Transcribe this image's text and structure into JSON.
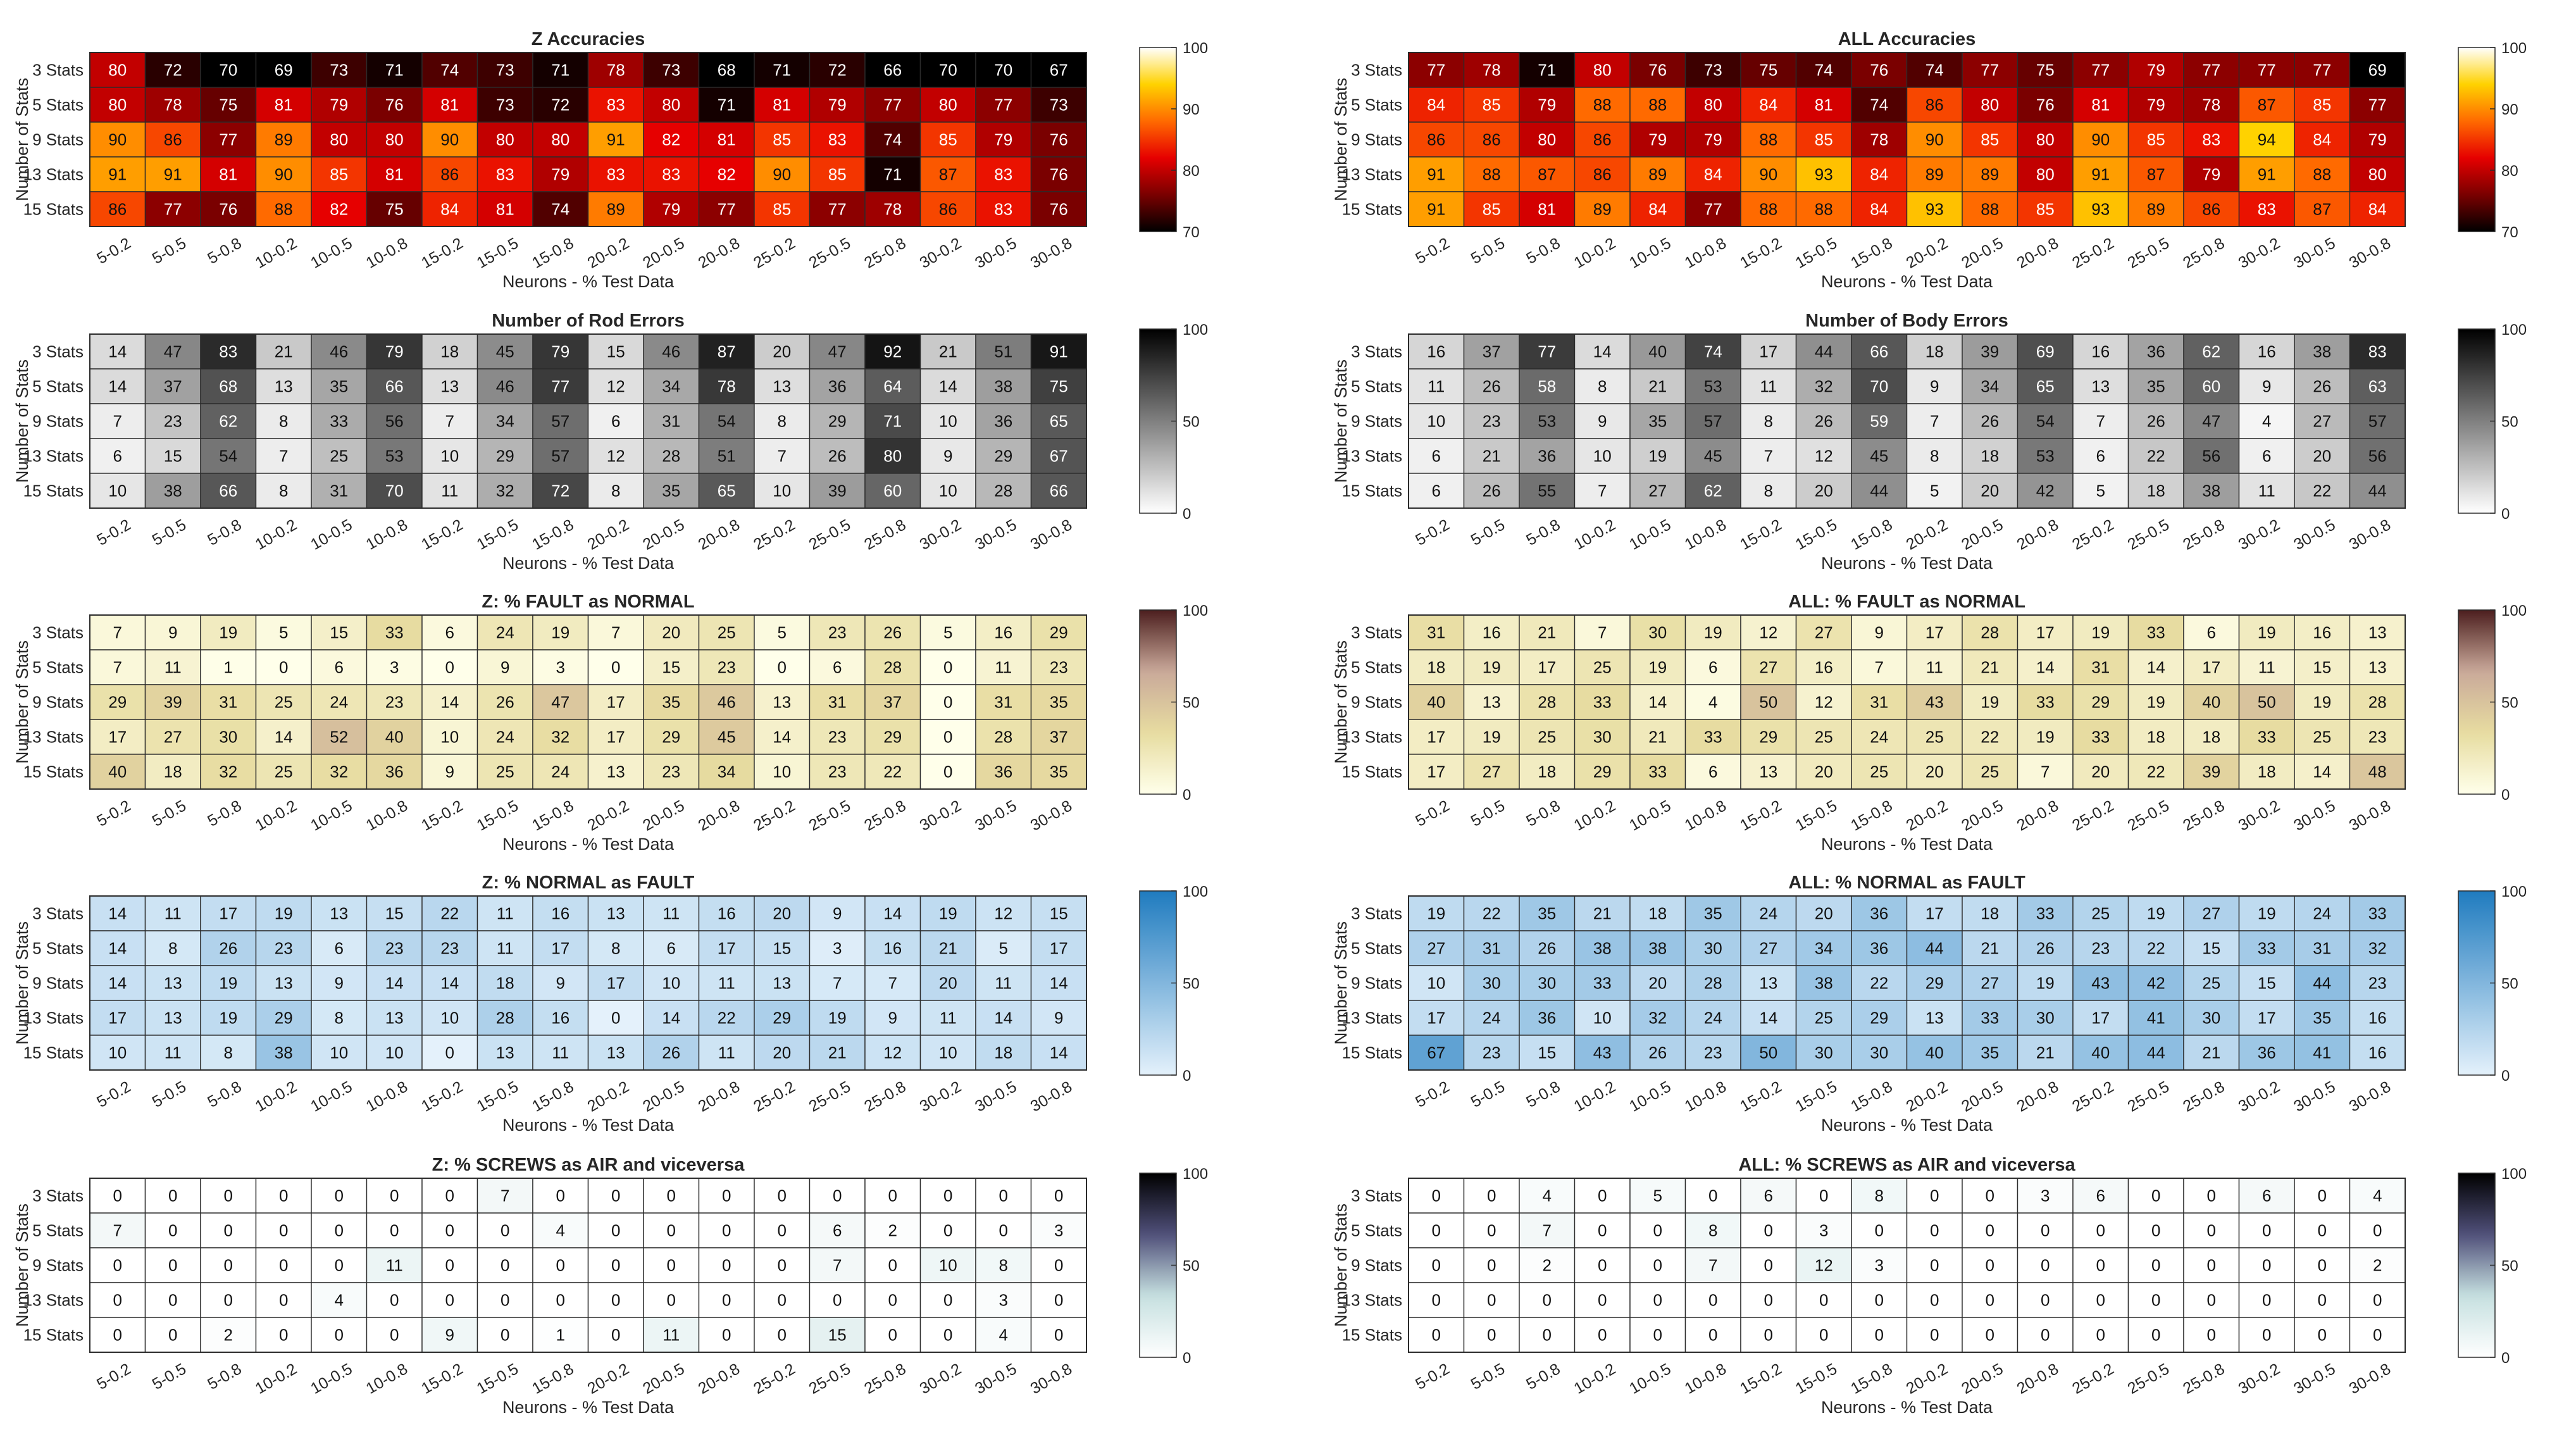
{
  "rows": [
    "3 Stats",
    "5 Stats",
    "9 Stats",
    "13 Stats",
    "15 Stats"
  ],
  "columns": [
    "5-0.2",
    "5-0.5",
    "5-0.8",
    "10-0.2",
    "10-0.5",
    "10-0.8",
    "15-0.2",
    "15-0.5",
    "15-0.8",
    "20-0.2",
    "20-0.5",
    "20-0.8",
    "25-0.2",
    "25-0.5",
    "25-0.8",
    "30-0.2",
    "30-0.5",
    "30-0.8"
  ],
  "ylabel": "Number of Stats",
  "xlabel": "Neurons - % Test Data",
  "colors": {
    "hot": [
      "#000000",
      "#7a0000",
      "#e60000",
      "#ff6a00",
      "#ffd200",
      "#ffffff"
    ],
    "gray": [
      "#ffffff",
      "#000000"
    ],
    "pink": [
      "#ffffea",
      "#e7dca0",
      "#c9a99a",
      "#4c1e1e"
    ],
    "blue": [
      "#e4f1fb",
      "#1f7bbf"
    ],
    "bone": [
      "#ffffff",
      "#c6e0e0",
      "#50507a",
      "#000000"
    ],
    "grid": "#2b2b2b",
    "text": "#262626"
  },
  "chart_data": [
    {
      "type": "heatmap",
      "title": "Z Accuracies",
      "colormap": "hot",
      "clim": [
        70,
        100
      ],
      "cticks": [
        "100",
        "90",
        "80",
        "70"
      ],
      "values": [
        [
          80,
          72,
          70,
          69,
          73,
          71,
          74,
          73,
          71,
          78,
          73,
          68,
          71,
          72,
          66,
          70,
          70,
          67
        ],
        [
          80,
          78,
          75,
          81,
          79,
          76,
          81,
          73,
          72,
          83,
          80,
          71,
          81,
          79,
          77,
          80,
          77,
          73
        ],
        [
          90,
          86,
          77,
          89,
          80,
          80,
          90,
          80,
          80,
          91,
          82,
          81,
          85,
          83,
          74,
          85,
          79,
          76
        ],
        [
          91,
          91,
          81,
          90,
          85,
          81,
          86,
          83,
          79,
          83,
          83,
          82,
          90,
          85,
          71,
          87,
          83,
          76
        ],
        [
          86,
          77,
          76,
          88,
          82,
          75,
          84,
          81,
          74,
          89,
          79,
          77,
          85,
          77,
          78,
          86,
          83,
          76
        ]
      ]
    },
    {
      "type": "heatmap",
      "title": "ALL Accuracies",
      "colormap": "hot",
      "clim": [
        70,
        100
      ],
      "cticks": [
        "100",
        "90",
        "80",
        "70"
      ],
      "values": [
        [
          77,
          78,
          71,
          80,
          76,
          73,
          75,
          74,
          76,
          74,
          77,
          75,
          77,
          79,
          77,
          77,
          77,
          69
        ],
        [
          84,
          85,
          79,
          88,
          88,
          80,
          84,
          81,
          74,
          86,
          80,
          76,
          81,
          79,
          78,
          87,
          85,
          77
        ],
        [
          86,
          86,
          80,
          86,
          79,
          79,
          88,
          85,
          78,
          90,
          85,
          80,
          90,
          85,
          83,
          94,
          84,
          79
        ],
        [
          91,
          88,
          87,
          86,
          89,
          84,
          90,
          93,
          84,
          89,
          89,
          80,
          91,
          87,
          79,
          91,
          88,
          80
        ],
        [
          91,
          85,
          81,
          89,
          84,
          77,
          88,
          88,
          84,
          93,
          88,
          85,
          93,
          89,
          86,
          83,
          87,
          84
        ]
      ]
    },
    {
      "type": "heatmap",
      "title": "Number of Rod Errors",
      "colormap": "gray",
      "clim": [
        0,
        100
      ],
      "cticks": [
        "100",
        "50",
        "0"
      ],
      "values": [
        [
          14,
          47,
          83,
          21,
          46,
          79,
          18,
          45,
          79,
          15,
          46,
          87,
          20,
          47,
          92,
          21,
          51,
          91
        ],
        [
          14,
          37,
          68,
          13,
          35,
          66,
          13,
          46,
          77,
          12,
          34,
          78,
          13,
          36,
          64,
          14,
          38,
          75
        ],
        [
          7,
          23,
          62,
          8,
          33,
          56,
          7,
          34,
          57,
          6,
          31,
          54,
          8,
          29,
          71,
          10,
          36,
          65
        ],
        [
          6,
          15,
          54,
          7,
          25,
          53,
          10,
          29,
          57,
          12,
          28,
          51,
          7,
          26,
          80,
          9,
          29,
          67
        ],
        [
          10,
          38,
          66,
          8,
          31,
          70,
          11,
          32,
          72,
          8,
          35,
          65,
          10,
          39,
          60,
          10,
          28,
          66
        ]
      ]
    },
    {
      "type": "heatmap",
      "title": "Number of Body Errors",
      "colormap": "gray",
      "clim": [
        0,
        100
      ],
      "cticks": [
        "100",
        "50",
        "0"
      ],
      "values": [
        [
          16,
          37,
          77,
          14,
          40,
          74,
          17,
          44,
          66,
          18,
          39,
          69,
          16,
          36,
          62,
          16,
          38,
          83
        ],
        [
          11,
          26,
          58,
          8,
          21,
          53,
          11,
          32,
          70,
          9,
          34,
          65,
          13,
          35,
          60,
          9,
          26,
          63
        ],
        [
          10,
          23,
          53,
          9,
          35,
          57,
          8,
          26,
          59,
          7,
          26,
          54,
          7,
          26,
          47,
          4,
          27,
          57
        ],
        [
          6,
          21,
          36,
          10,
          19,
          45,
          7,
          12,
          45,
          8,
          18,
          53,
          6,
          22,
          56,
          6,
          20,
          56
        ],
        [
          6,
          26,
          55,
          7,
          27,
          62,
          8,
          20,
          44,
          5,
          20,
          42,
          5,
          18,
          38,
          11,
          22,
          44
        ]
      ]
    },
    {
      "type": "heatmap",
      "title": "Z: % FAULT as NORMAL",
      "colormap": "pink",
      "clim": [
        0,
        100
      ],
      "cticks": [
        "100",
        "50",
        "0"
      ],
      "values": [
        [
          7,
          9,
          19,
          5,
          15,
          33,
          6,
          24,
          19,
          7,
          20,
          25,
          5,
          23,
          26,
          5,
          16,
          29
        ],
        [
          7,
          11,
          1,
          0,
          6,
          3,
          0,
          9,
          3,
          0,
          15,
          23,
          0,
          6,
          28,
          0,
          11,
          23
        ],
        [
          29,
          39,
          31,
          25,
          24,
          23,
          14,
          26,
          47,
          17,
          35,
          46,
          13,
          31,
          37,
          0,
          31,
          35
        ],
        [
          17,
          27,
          30,
          14,
          52,
          40,
          10,
          24,
          32,
          17,
          29,
          45,
          14,
          23,
          29,
          0,
          28,
          37
        ],
        [
          40,
          18,
          32,
          25,
          32,
          36,
          9,
          25,
          24,
          13,
          23,
          34,
          10,
          23,
          22,
          0,
          36,
          35
        ]
      ]
    },
    {
      "type": "heatmap",
      "title": "ALL: % FAULT as NORMAL",
      "colormap": "pink",
      "clim": [
        0,
        100
      ],
      "cticks": [
        "100",
        "50",
        "0"
      ],
      "values": [
        [
          31,
          16,
          21,
          7,
          30,
          19,
          12,
          27,
          9,
          17,
          28,
          17,
          19,
          33,
          6,
          19,
          16,
          13
        ],
        [
          18,
          19,
          17,
          25,
          19,
          6,
          27,
          16,
          7,
          11,
          21,
          14,
          31,
          14,
          17,
          11,
          15,
          13
        ],
        [
          40,
          13,
          28,
          33,
          14,
          4,
          50,
          12,
          31,
          43,
          19,
          33,
          29,
          19,
          40,
          50,
          19,
          28
        ],
        [
          17,
          19,
          25,
          30,
          21,
          33,
          29,
          25,
          24,
          25,
          22,
          19,
          33,
          18,
          18,
          33,
          25,
          23
        ],
        [
          17,
          27,
          18,
          29,
          33,
          6,
          13,
          20,
          25,
          20,
          25,
          7,
          20,
          22,
          39,
          18,
          14,
          48
        ]
      ]
    },
    {
      "type": "heatmap",
      "title": "Z: % NORMAL as FAULT",
      "colormap": "blue",
      "clim": [
        0,
        100
      ],
      "cticks": [
        "100",
        "50",
        "0"
      ],
      "values": [
        [
          14,
          11,
          17,
          19,
          13,
          15,
          22,
          11,
          16,
          13,
          11,
          16,
          20,
          9,
          14,
          19,
          12,
          15
        ],
        [
          14,
          8,
          26,
          23,
          6,
          23,
          23,
          11,
          17,
          8,
          6,
          17,
          15,
          3,
          16,
          21,
          5,
          17
        ],
        [
          14,
          13,
          19,
          13,
          9,
          14,
          14,
          18,
          9,
          17,
          10,
          11,
          13,
          7,
          7,
          20,
          11,
          14
        ],
        [
          17,
          13,
          19,
          29,
          8,
          13,
          10,
          28,
          16,
          0,
          14,
          22,
          29,
          19,
          9,
          11,
          14,
          9
        ],
        [
          10,
          11,
          8,
          38,
          10,
          10,
          0,
          13,
          11,
          13,
          26,
          11,
          20,
          21,
          12,
          10,
          18,
          14
        ]
      ]
    },
    {
      "type": "heatmap",
      "title": "ALL: % NORMAL as FAULT",
      "colormap": "blue",
      "clim": [
        0,
        100
      ],
      "cticks": [
        "100",
        "50",
        "0"
      ],
      "values": [
        [
          19,
          22,
          35,
          21,
          18,
          35,
          24,
          20,
          36,
          17,
          18,
          33,
          25,
          19,
          27,
          19,
          24,
          33
        ],
        [
          27,
          31,
          26,
          38,
          38,
          30,
          27,
          34,
          36,
          44,
          21,
          26,
          23,
          22,
          15,
          33,
          31,
          32
        ],
        [
          10,
          30,
          30,
          33,
          20,
          28,
          13,
          38,
          22,
          29,
          27,
          19,
          43,
          42,
          25,
          15,
          44,
          23
        ],
        [
          17,
          24,
          36,
          10,
          32,
          24,
          14,
          25,
          29,
          13,
          33,
          30,
          17,
          41,
          30,
          17,
          35,
          16
        ],
        [
          67,
          23,
          15,
          43,
          26,
          23,
          50,
          30,
          30,
          40,
          35,
          21,
          40,
          44,
          21,
          36,
          41,
          16
        ]
      ]
    },
    {
      "type": "heatmap",
      "title": "Z: % SCREWS as AIR and viceversa",
      "colormap": "bone",
      "clim": [
        0,
        100
      ],
      "cticks": [
        "100",
        "50",
        "0"
      ],
      "values": [
        [
          0,
          0,
          0,
          0,
          0,
          0,
          0,
          7,
          0,
          0,
          0,
          0,
          0,
          0,
          0,
          0,
          0,
          0
        ],
        [
          7,
          0,
          0,
          0,
          0,
          0,
          0,
          0,
          4,
          0,
          0,
          0,
          0,
          6,
          2,
          0,
          0,
          3
        ],
        [
          0,
          0,
          0,
          0,
          0,
          11,
          0,
          0,
          0,
          0,
          0,
          0,
          0,
          7,
          0,
          10,
          8,
          0
        ],
        [
          0,
          0,
          0,
          0,
          4,
          0,
          0,
          0,
          0,
          0,
          0,
          0,
          0,
          0,
          0,
          0,
          3,
          0
        ],
        [
          0,
          0,
          2,
          0,
          0,
          0,
          9,
          0,
          1,
          0,
          11,
          0,
          0,
          15,
          0,
          0,
          4,
          0
        ]
      ]
    },
    {
      "type": "heatmap",
      "title": "ALL: % SCREWS as AIR and viceversa",
      "colormap": "bone",
      "clim": [
        0,
        100
      ],
      "cticks": [
        "100",
        "50",
        "0"
      ],
      "values": [
        [
          0,
          0,
          4,
          0,
          5,
          0,
          6,
          0,
          8,
          0,
          0,
          3,
          6,
          0,
          0,
          6,
          0,
          4
        ],
        [
          0,
          0,
          7,
          0,
          0,
          8,
          0,
          3,
          0,
          0,
          0,
          0,
          0,
          0,
          0,
          0,
          0,
          0
        ],
        [
          0,
          0,
          2,
          0,
          0,
          7,
          0,
          12,
          3,
          0,
          0,
          0,
          0,
          0,
          0,
          0,
          0,
          2
        ],
        [
          0,
          0,
          0,
          0,
          0,
          0,
          0,
          0,
          0,
          0,
          0,
          0,
          0,
          0,
          0,
          0,
          0,
          0
        ],
        [
          0,
          0,
          0,
          0,
          0,
          0,
          0,
          0,
          0,
          0,
          0,
          0,
          0,
          0,
          0,
          0,
          0,
          0
        ]
      ]
    }
  ]
}
